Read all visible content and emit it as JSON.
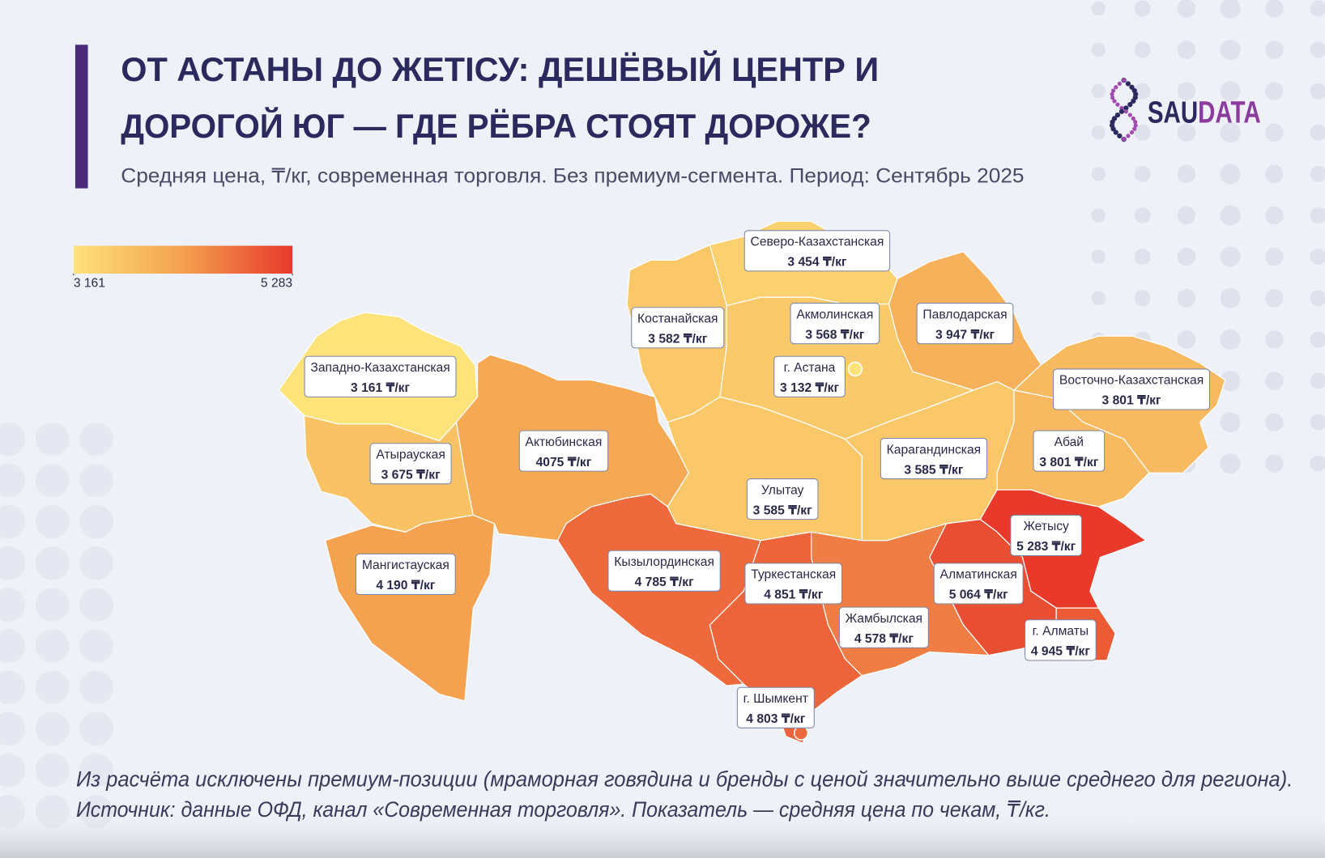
{
  "chart_data": {
    "type": "choropleth",
    "title_lines": [
      "ОТ АСТАНЫ ДО ЖЕТІСУ: ДЕШЁВЫЙ ЦЕНТР И",
      "ДОРОГОЙ ЮГ — ГДЕ РЁБРА СТОЯТ ДОРОЖЕ?"
    ],
    "subtitle": "Средняя цена, ₸/кг, современная торговля. Без премиум-сегмента. Период: Сентябрь 2025",
    "colors": [
      "#fee27a",
      "#f4a04f",
      "#e8392b"
    ],
    "colorbar_ticks": [
      {
        "value": 3161,
        "label": "3 161"
      },
      {
        "value": 5283,
        "label": "5 283"
      }
    ],
    "regions": [
      {
        "name": "Северо-Казахстанская",
        "value": 3454,
        "value_label": "3 454 ₸/кг"
      },
      {
        "name": "Костанайская",
        "value": 3582,
        "value_label": "3 582 ₸/кг"
      },
      {
        "name": "Акмолинская",
        "value": 3568,
        "value_label": "3 568 ₸/кг"
      },
      {
        "name": "Павлодарская",
        "value": 3947,
        "value_label": "3 947 ₸/кг"
      },
      {
        "name": "Западно-Казахстанская",
        "value": 3161,
        "value_label": "3 161 ₸/кг"
      },
      {
        "name": "г. Астана",
        "value": 3132,
        "value_label": "3 132 ₸/кг"
      },
      {
        "name": "Восточно-Казахстанская",
        "value": 3801,
        "value_label": "3 801 ₸/кг"
      },
      {
        "name": "Атырауская",
        "value": 3675,
        "value_label": "3 675 ₸/кг"
      },
      {
        "name": "Актюбинская",
        "value": 4075,
        "value_label": "4075 ₸/кг"
      },
      {
        "name": "Карагандинская",
        "value": 3585,
        "value_label": "3 585 ₸/кг"
      },
      {
        "name": "Абай",
        "value": 3801,
        "value_label": "3 801 ₸/кг"
      },
      {
        "name": "Улытау",
        "value": 3585,
        "value_label": "3 585 ₸/кг"
      },
      {
        "name": "Жетысу",
        "value": 5283,
        "value_label": "5 283 ₸/кг"
      },
      {
        "name": "Мангистауская",
        "value": 4190,
        "value_label": "4 190 ₸/кг"
      },
      {
        "name": "Кызылординская",
        "value": 4785,
        "value_label": "4 785 ₸/кг"
      },
      {
        "name": "Туркестанская",
        "value": 4851,
        "value_label": "4 851 ₸/кг"
      },
      {
        "name": "Алматинская",
        "value": 5064,
        "value_label": "5 064 ₸/кг"
      },
      {
        "name": "Жамбылская",
        "value": 4578,
        "value_label": "4 578 ₸/кг"
      },
      {
        "name": "г. Алматы",
        "value": 4945,
        "value_label": "4 945 ₸/кг"
      },
      {
        "name": "г. Шымкент",
        "value": 4803,
        "value_label": "4 803 ₸/кг"
      }
    ],
    "footnotes": [
      "Из расчёта исключены премиум-позиции (мраморная говядина и бренды с ценой значительно выше среднего для региона).",
      "Источник: данные ОФД, канал «Современная торговля». Показатель — средняя цена по чекам, ₸/кг."
    ]
  },
  "logo": {
    "parts": [
      "SAU",
      "DATA"
    ]
  }
}
